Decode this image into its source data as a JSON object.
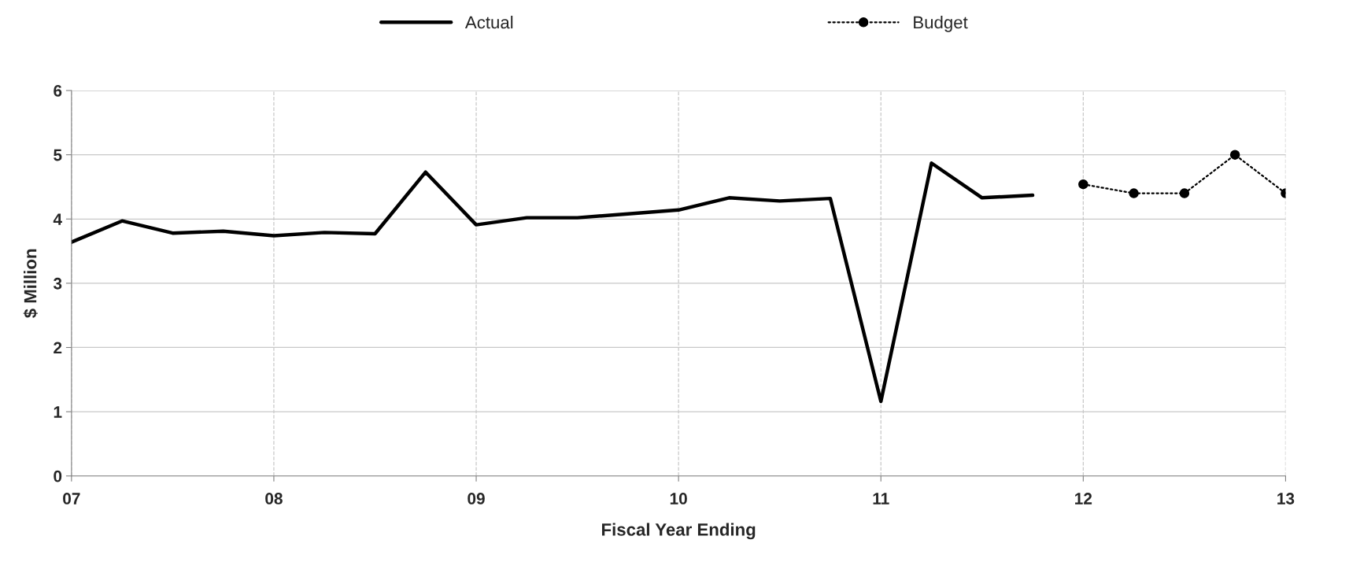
{
  "chart_data": {
    "type": "line",
    "xlabel": "Fiscal Year Ending",
    "ylabel": "$ Million",
    "xlim": [
      7,
      13
    ],
    "xticks": [
      {
        "value": 7,
        "label": "07"
      },
      {
        "value": 8,
        "label": "08"
      },
      {
        "value": 9,
        "label": "09"
      },
      {
        "value": 10,
        "label": "10"
      },
      {
        "value": 11,
        "label": "11"
      },
      {
        "value": 12,
        "label": "12"
      },
      {
        "value": 13,
        "label": "13"
      }
    ],
    "ylim": [
      0,
      6
    ],
    "yticks": [
      0,
      1,
      2,
      3,
      4,
      5,
      6
    ],
    "grid": true,
    "legend": "top",
    "series": [
      {
        "name": "Actual",
        "color": "#000000",
        "line_style": "solid",
        "marker": "none",
        "x": [
          7,
          7.25,
          7.5,
          7.75,
          8,
          8.25,
          8.5,
          8.75,
          9,
          9.25,
          9.5,
          9.75,
          10,
          10.25,
          10.5,
          10.75,
          11,
          11.25,
          11.5,
          11.75
        ],
        "values": [
          3.64,
          3.97,
          3.78,
          3.81,
          3.74,
          3.79,
          3.77,
          4.73,
          3.91,
          4.02,
          4.02,
          4.08,
          4.14,
          4.33,
          4.28,
          4.32,
          1.16,
          4.87,
          4.33,
          4.37
        ]
      },
      {
        "name": "Budget",
        "color": "#000000",
        "line_style": "dotted",
        "marker": "circle",
        "x": [
          12,
          12.25,
          12.5,
          12.75,
          13
        ],
        "values": [
          4.54,
          4.4,
          4.4,
          5.0,
          4.4
        ]
      }
    ]
  }
}
